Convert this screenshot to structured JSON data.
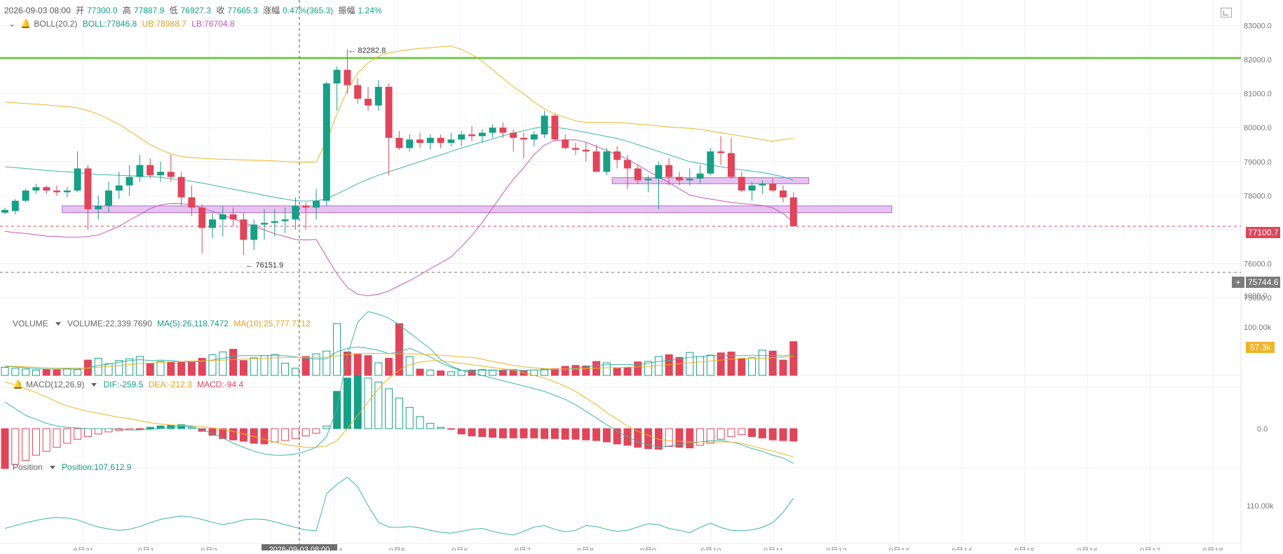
{
  "header": {
    "datetime": "2026-09-03 08:00",
    "open_label": "开",
    "open_value": "77300.0",
    "high_label": "高",
    "high_value": "77887.9",
    "low_label": "低",
    "low_value": "76927.3",
    "close_label": "收",
    "close_value": "77665.3",
    "change_label": "涨幅",
    "change_value": "0.47%(365.3)",
    "amplitude_label": "振幅",
    "amplitude_value": "1.24%"
  },
  "boll": {
    "label": "BOLL(20,2)",
    "mid": "BOLL:77846.8",
    "ub": "UB:78988.7",
    "lb": "LB:76704.8"
  },
  "volume_legend": {
    "label": "VOLUME",
    "value": "VOLUME:22,339.7690",
    "ma5": "MA(5):26,118.7472",
    "ma10": "MA(10):25,777.7712"
  },
  "macd_legend": {
    "label": "MACD(12,26,9)",
    "dif": "DIF:-259.5",
    "dea": "DEA:-212.3",
    "macd": "MACD:-94.4"
  },
  "position_legend": {
    "label": "Position",
    "value": "Position:107,612.9"
  },
  "price_tags": {
    "current": "77100.7",
    "cursor": "75744.6",
    "volume_tag": "57.3k"
  },
  "annotations": {
    "high": "82282.8",
    "low": "76151.9"
  },
  "colors": {
    "up": "#16a085",
    "down": "#e04559",
    "boll_mid": "#3ab7a8",
    "boll_ub": "#f0b429",
    "boll_lb": "#c659b7",
    "green_line": "#5cc832",
    "zone_fill": "#e2b8ee",
    "zone_stroke": "#b36ad1",
    "ma5": "#3ab7a8",
    "ma10": "#f0b429"
  },
  "chart_data": {
    "type": "candlestick",
    "price_axis": {
      "ticks": [
        83000.0,
        82000.0,
        81000.0,
        80000.0,
        79000.0,
        78000.0,
        77000.0,
        76000.0,
        75000.0
      ],
      "tick_labels": [
        "83000.0",
        "82000.0",
        "81000.0",
        "80000.0",
        "79000.0",
        "78000.0",
        "",
        "76000.0",
        "75000.0"
      ],
      "range": [
        74650,
        83300
      ]
    },
    "volume_axis": {
      "tick_labels": [
        "100.00k"
      ]
    },
    "macd_axis": {
      "tick_labels": [
        "1000.0",
        "0.0"
      ]
    },
    "position_axis": {
      "tick_labels": [
        "110.00k"
      ]
    },
    "x_axis_labels": [
      "8月31",
      "9月1",
      "9月2",
      "9月3",
      "9月4",
      "9月5",
      "9月6",
      "9月7",
      "9月8",
      "9月9",
      "9月10",
      "9月11",
      "9月12",
      "9月13",
      "9月14",
      "9月15",
      "9月16",
      "9月17",
      "9月18"
    ],
    "x_axis_highlight": "2026-09-03 08:00",
    "horizontal_lines": [
      {
        "price": 82050,
        "label": "resistance"
      },
      {
        "price": 77100.7,
        "label": "current"
      },
      {
        "price": 75744.6,
        "label": "cursor"
      }
    ],
    "zones": [
      {
        "from_index": 6,
        "to_index": 85,
        "low": 77500,
        "high": 77700
      },
      {
        "from_index": 59,
        "to_index": 77,
        "low": 78350,
        "high": 78530
      }
    ],
    "candles": [
      [
        77500,
        77650,
        77450,
        77580
      ],
      [
        77550,
        77900,
        77450,
        77850
      ],
      [
        77850,
        78200,
        77800,
        78150
      ],
      [
        78150,
        78350,
        78050,
        78250
      ],
      [
        78250,
        78300,
        78050,
        78150
      ],
      [
        78150,
        78300,
        78000,
        78100
      ],
      [
        78100,
        78250,
        77950,
        78150
      ],
      [
        78150,
        79300,
        78100,
        78800
      ],
      [
        78800,
        78900,
        77000,
        77600
      ],
      [
        77600,
        78000,
        77300,
        77700
      ],
      [
        77700,
        78400,
        77500,
        78150
      ],
      [
        78150,
        78700,
        77900,
        78300
      ],
      [
        78300,
        78900,
        78000,
        78550
      ],
      [
        78550,
        79200,
        78400,
        78900
      ],
      [
        78900,
        79100,
        78500,
        78600
      ],
      [
        78600,
        79000,
        78400,
        78700
      ],
      [
        78700,
        79200,
        78400,
        78550
      ],
      [
        78550,
        78700,
        77700,
        77950
      ],
      [
        77950,
        78300,
        77400,
        77650
      ],
      [
        77650,
        77750,
        76300,
        77050
      ],
      [
        77050,
        77500,
        76750,
        77300
      ],
      [
        77300,
        77700,
        76800,
        77450
      ],
      [
        77450,
        77650,
        77100,
        77300
      ],
      [
        77300,
        77500,
        76250,
        76700
      ],
      [
        76700,
        77300,
        76400,
        77150
      ],
      [
        77150,
        77600,
        76700,
        77200
      ],
      [
        77200,
        77600,
        76800,
        77250
      ],
      [
        77250,
        77650,
        76900,
        77300
      ],
      [
        77300,
        77950,
        77000,
        77700
      ],
      [
        77700,
        77800,
        77000,
        77650
      ],
      [
        77650,
        78200,
        77300,
        77850
      ],
      [
        77850,
        81350,
        77700,
        81300
      ],
      [
        81300,
        81800,
        80500,
        81700
      ],
      [
        81700,
        82300,
        81000,
        81250
      ],
      [
        81250,
        81450,
        80700,
        80850
      ],
      [
        80850,
        81200,
        80500,
        80650
      ],
      [
        80650,
        81400,
        80500,
        81200
      ],
      [
        81200,
        81300,
        78600,
        79700
      ],
      [
        79700,
        79900,
        79350,
        79400
      ],
      [
        79400,
        79800,
        79300,
        79650
      ],
      [
        79650,
        79850,
        79400,
        79550
      ],
      [
        79550,
        79800,
        79350,
        79700
      ],
      [
        79700,
        79800,
        79400,
        79550
      ],
      [
        79550,
        79850,
        79450,
        79650
      ],
      [
        79650,
        79900,
        79450,
        79800
      ],
      [
        79800,
        80050,
        79600,
        79750
      ],
      [
        79750,
        79950,
        79550,
        79850
      ],
      [
        79850,
        80100,
        79700,
        80000
      ],
      [
        80000,
        80150,
        79700,
        79850
      ],
      [
        79850,
        79950,
        79300,
        79700
      ],
      [
        79700,
        79850,
        79100,
        79650
      ],
      [
        79650,
        79900,
        79450,
        79800
      ],
      [
        79800,
        80500,
        79700,
        80350
      ],
      [
        80350,
        80400,
        79600,
        79650
      ],
      [
        79650,
        79800,
        79350,
        79400
      ],
      [
        79400,
        79550,
        79200,
        79350
      ],
      [
        79350,
        79550,
        79000,
        79300
      ],
      [
        79300,
        79500,
        78700,
        78700
      ],
      [
        78700,
        79400,
        78600,
        79300
      ],
      [
        79300,
        79450,
        78800,
        79050
      ],
      [
        79050,
        79200,
        78200,
        78800
      ],
      [
        78800,
        78900,
        78350,
        78450
      ],
      [
        78450,
        78600,
        78100,
        78500
      ],
      [
        78500,
        79000,
        77600,
        78900
      ],
      [
        78900,
        79100,
        78300,
        78550
      ],
      [
        78550,
        78700,
        78300,
        78450
      ],
      [
        78450,
        78800,
        78300,
        78500
      ],
      [
        78500,
        78900,
        78350,
        78650
      ],
      [
        78650,
        79400,
        78600,
        79300
      ],
      [
        79300,
        79750,
        78900,
        79250
      ],
      [
        79250,
        79700,
        78500,
        78550
      ],
      [
        78550,
        78700,
        78100,
        78150
      ],
      [
        78150,
        78400,
        77850,
        78300
      ],
      [
        78300,
        78450,
        78050,
        78350
      ],
      [
        78350,
        78500,
        78100,
        78150
      ],
      [
        78150,
        78300,
        77800,
        77950
      ],
      [
        77950,
        78100,
        77100,
        77100
      ]
    ],
    "boll_mid": [
      78850,
      78820,
      78800,
      78770,
      78740,
      78720,
      78700,
      78680,
      78650,
      78620,
      78610,
      78600,
      78590,
      78570,
      78560,
      78540,
      78500,
      78460,
      78420,
      78370,
      78310,
      78250,
      78190,
      78130,
      78070,
      78010,
      77950,
      77900,
      77850,
      77840,
      77850,
      77900,
      78050,
      78200,
      78350,
      78480,
      78600,
      78700,
      78800,
      78900,
      79000,
      79100,
      79200,
      79300,
      79400,
      79490,
      79580,
      79670,
      79760,
      79840,
      79910,
      79980,
      80020,
      80010,
      79970,
      79920,
      79860,
      79800,
      79740,
      79680,
      79600,
      79500,
      79400,
      79300,
      79200,
      79100,
      79000,
      78950,
      78900,
      78850,
      78800,
      78760,
      78720,
      78680,
      78620,
      78560,
      78450
    ],
    "boll_ub": [
      80750,
      80730,
      80710,
      80690,
      80670,
      80640,
      80620,
      80580,
      80500,
      80400,
      80250,
      80100,
      79900,
      79700,
      79500,
      79350,
      79230,
      79150,
      79120,
      79100,
      79080,
      79070,
      79060,
      79050,
      79040,
      79030,
      79020,
      79000,
      78990,
      78980,
      78990,
      79600,
      80400,
      81100,
      81600,
      81900,
      82100,
      82200,
      82250,
      82300,
      82330,
      82350,
      82380,
      82400,
      82300,
      82150,
      81950,
      81700,
      81450,
      81200,
      81000,
      80750,
      80550,
      80400,
      80300,
      80200,
      80150,
      80150,
      80150,
      80150,
      80130,
      80100,
      80080,
      80050,
      80020,
      80000,
      79980,
      79950,
      79900,
      79850,
      79800,
      79750,
      79700,
      79650,
      79600,
      79650,
      79680
    ],
    "boll_lb": [
      76950,
      76910,
      76890,
      76850,
      76810,
      76800,
      76780,
      76780,
      76800,
      76840,
      76970,
      77100,
      77280,
      77440,
      77620,
      77730,
      77770,
      77770,
      77720,
      77640,
      77540,
      77430,
      77320,
      77210,
      77100,
      76990,
      76880,
      76800,
      76710,
      76700,
      76710,
      76200,
      75700,
      75300,
      75100,
      75060,
      75100,
      75200,
      75350,
      75500,
      75670,
      75850,
      76020,
      76200,
      76500,
      76830,
      77210,
      77640,
      78070,
      78480,
      78820,
      79210,
      79490,
      79620,
      79640,
      79640,
      79570,
      79450,
      79330,
      79210,
      79070,
      78900,
      78720,
      78550,
      78380,
      78200,
      78020,
      77950,
      77900,
      77850,
      77800,
      77770,
      77740,
      77710,
      77640,
      77470,
      77220
    ],
    "volume": {
      "values": [
        18,
        16,
        14,
        12,
        13,
        12,
        15,
        13,
        34,
        38,
        26,
        33,
        37,
        42,
        27,
        31,
        30,
        29,
        29,
        38,
        46,
        52,
        58,
        33,
        39,
        44,
        46,
        27,
        16,
        42,
        48,
        54,
        115,
        52,
        48,
        44,
        28,
        38,
        115,
        42,
        14,
        12,
        10,
        8,
        11,
        12,
        13,
        12,
        11,
        13,
        10,
        12,
        14,
        15,
        20,
        22,
        21,
        31,
        28,
        17,
        18,
        30,
        31,
        42,
        46,
        40,
        51,
        42,
        45,
        50,
        52,
        37,
        39,
        56,
        54,
        34,
        75
      ],
      "ma5": [
        20,
        19,
        17,
        15,
        14,
        14,
        14,
        14,
        17,
        22,
        25,
        29,
        33,
        35,
        33,
        34,
        33,
        31,
        30,
        31,
        34,
        38,
        42,
        44,
        44,
        44,
        45,
        44,
        41,
        38,
        36,
        37,
        52,
        60,
        63,
        60,
        56,
        48,
        52,
        60,
        51,
        41,
        28,
        18,
        11,
        11,
        11,
        11,
        12,
        12,
        11,
        12,
        12,
        13,
        14,
        16,
        19,
        22,
        24,
        24,
        24,
        25,
        27,
        31,
        33,
        36,
        40,
        42,
        44,
        44,
        44,
        44,
        44,
        44,
        44,
        43,
        46
      ],
      "ma10": [
        21,
        20,
        19,
        18,
        17,
        16,
        16,
        16,
        16,
        18,
        20,
        22,
        24,
        26,
        27,
        29,
        30,
        31,
        32,
        32,
        33,
        34,
        35,
        36,
        37,
        38,
        39,
        40,
        40,
        40,
        40,
        40,
        43,
        46,
        48,
        49,
        49,
        48,
        48,
        48,
        47,
        46,
        45,
        43,
        41,
        40,
        36,
        31,
        27,
        22,
        19,
        17,
        15,
        14,
        14,
        14,
        15,
        16,
        17,
        17,
        18,
        19,
        20,
        22,
        24,
        26,
        28,
        30,
        32,
        34,
        36,
        38,
        38,
        38,
        39,
        40,
        42
      ]
    },
    "macd": {
      "hist": [
        -300,
        -270,
        -240,
        -200,
        -170,
        -140,
        -110,
        -80,
        -60,
        -40,
        -25,
        -15,
        -10,
        -5,
        10,
        20,
        25,
        30,
        10,
        -20,
        -50,
        -75,
        -85,
        -95,
        -110,
        -115,
        -100,
        -90,
        -75,
        -55,
        -35,
        20,
        280,
        380,
        400,
        380,
        350,
        300,
        230,
        160,
        90,
        40,
        10,
        -5,
        -40,
        -55,
        -60,
        -65,
        -70,
        -70,
        -70,
        -70,
        -75,
        -75,
        -80,
        -80,
        -85,
        -90,
        -100,
        -115,
        -125,
        -140,
        -150,
        -155,
        -135,
        -140,
        -145,
        -125,
        -110,
        -80,
        -60,
        -45,
        -60,
        -70,
        -85,
        -90,
        -94
      ],
      "dif": [
        200,
        150,
        100,
        70,
        40,
        20,
        10,
        5,
        0,
        0,
        0,
        -5,
        -10,
        -10,
        -5,
        0,
        10,
        20,
        15,
        -5,
        -40,
        -70,
        -110,
        -140,
        -170,
        -190,
        -200,
        -200,
        -190,
        -170,
        -140,
        -60,
        150,
        550,
        800,
        880,
        860,
        830,
        780,
        720,
        660,
        600,
        520,
        470,
        440,
        420,
        400,
        380,
        360,
        340,
        320,
        300,
        280,
        250,
        220,
        180,
        130,
        80,
        30,
        -20,
        -60,
        -100,
        -120,
        -140,
        -130,
        -120,
        -110,
        -100,
        -90,
        -90,
        -100,
        -120,
        -150,
        -170,
        -200,
        -220,
        -260
      ],
      "dea": [
        350,
        330,
        300,
        270,
        240,
        200,
        170,
        150,
        130,
        115,
        100,
        85,
        75,
        60,
        45,
        35,
        28,
        25,
        22,
        15,
        5,
        -5,
        -20,
        -40,
        -60,
        -80,
        -100,
        -120,
        -130,
        -140,
        -140,
        -130,
        -90,
        0,
        100,
        200,
        300,
        380,
        440,
        480,
        500,
        510,
        510,
        500,
        490,
        480,
        470,
        460,
        450,
        440,
        420,
        400,
        380,
        350,
        320,
        280,
        230,
        180,
        120,
        70,
        20,
        -20,
        -50,
        -80,
        -90,
        -95,
        -100,
        -100,
        -100,
        -100,
        -100,
        -110,
        -130,
        -150,
        -170,
        -190,
        -212
      ]
    },
    "position": [
      105.2,
      105.8,
      106.4,
      106.9,
      107.3,
      107.5,
      107.4,
      107.0,
      106.2,
      105.5,
      105.1,
      104.8,
      105.0,
      105.6,
      106.4,
      107.1,
      107.5,
      107.8,
      107.6,
      107.1,
      106.5,
      106.0,
      106.4,
      107.0,
      107.2,
      107.1,
      106.6,
      106.0,
      105.4,
      104.9,
      104.7,
      112.5,
      114.5,
      116.0,
      114.0,
      110.0,
      106.5,
      105.5,
      105.4,
      105.6,
      105.3,
      104.8,
      104.4,
      104.2,
      104.6,
      105.0,
      105.2,
      104.6,
      104.1,
      103.8,
      104.6,
      105.5,
      105.8,
      105.0,
      104.5,
      104.8,
      105.8,
      105.6,
      105.0,
      104.6,
      104.8,
      105.5,
      106.2,
      106.0,
      105.2,
      104.8,
      104.3,
      105.4,
      106.3,
      105.4,
      104.8,
      104.7,
      104.9,
      105.4,
      106.4,
      108.6,
      111.6
    ]
  }
}
